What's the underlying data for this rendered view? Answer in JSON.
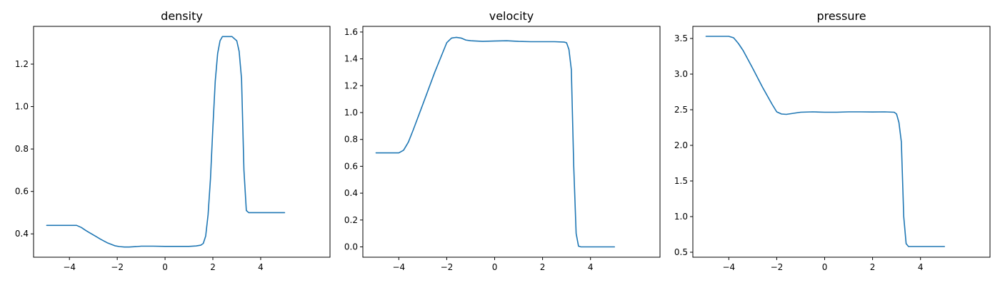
{
  "style": {
    "line_color": "#1f77b4",
    "background": "#ffffff",
    "axes_color": "#000000"
  },
  "chart_data": [
    {
      "type": "line",
      "title": "density",
      "xlabel": "",
      "ylabel": "",
      "grid": false,
      "xlim": [
        -5.5,
        6.9
      ],
      "ylim": [
        0.29,
        1.378
      ],
      "x_ticks": [
        -4,
        -2,
        0,
        2,
        4
      ],
      "x_tick_labels": [
        "−4",
        "−2",
        "0",
        "2",
        "4"
      ],
      "y_ticks": [
        0.4,
        0.6,
        0.8,
        1.0,
        1.2
      ],
      "y_tick_labels": [
        "0.4",
        "0.6",
        "0.8",
        "1.0",
        "1.2"
      ],
      "series": [
        {
          "x": [
            -4.95,
            -4.5,
            -4.0,
            -3.7,
            -3.5,
            -3.3,
            -3.0,
            -2.7,
            -2.4,
            -2.1,
            -1.9,
            -1.7,
            -1.5,
            -1.2,
            -1.0,
            -0.5,
            0.0,
            0.5,
            1.0,
            1.3,
            1.5,
            1.6,
            1.7,
            1.8,
            1.9,
            2.0,
            2.1,
            2.2,
            2.3,
            2.4,
            2.5,
            2.6,
            2.8,
            3.0,
            3.1,
            3.2,
            3.3,
            3.4,
            3.5,
            3.6,
            4.0,
            4.5,
            5.0
          ],
          "y": [
            0.44,
            0.44,
            0.44,
            0.44,
            0.43,
            0.415,
            0.395,
            0.375,
            0.357,
            0.344,
            0.34,
            0.338,
            0.338,
            0.34,
            0.342,
            0.342,
            0.341,
            0.341,
            0.341,
            0.343,
            0.347,
            0.355,
            0.39,
            0.49,
            0.66,
            0.9,
            1.12,
            1.25,
            1.31,
            1.33,
            1.33,
            1.33,
            1.33,
            1.31,
            1.26,
            1.13,
            0.7,
            0.51,
            0.5,
            0.5,
            0.5,
            0.5,
            0.5
          ]
        }
      ]
    },
    {
      "type": "line",
      "title": "velocity",
      "xlabel": "",
      "ylabel": "",
      "grid": false,
      "xlim": [
        -5.5,
        6.9
      ],
      "ylim": [
        -0.077,
        1.642
      ],
      "x_ticks": [
        -4,
        -2,
        0,
        2,
        4
      ],
      "x_tick_labels": [
        "−4",
        "−2",
        "0",
        "2",
        "4"
      ],
      "y_ticks": [
        0.0,
        0.2,
        0.4,
        0.6,
        0.8,
        1.0,
        1.2,
        1.4,
        1.6
      ],
      "y_tick_labels": [
        "0.0",
        "0.2",
        "0.4",
        "0.6",
        "0.8",
        "1.0",
        "1.2",
        "1.4",
        "1.6"
      ],
      "series": [
        {
          "x": [
            -4.95,
            -4.5,
            -4.0,
            -3.8,
            -3.6,
            -3.4,
            -3.0,
            -2.5,
            -2.0,
            -1.8,
            -1.6,
            -1.4,
            -1.2,
            -1.0,
            -0.5,
            0.0,
            0.5,
            1.0,
            1.5,
            2.0,
            2.5,
            2.9,
            3.0,
            3.1,
            3.2,
            3.3,
            3.4,
            3.5,
            3.6,
            4.0,
            4.5,
            5.0
          ],
          "y": [
            0.7,
            0.7,
            0.7,
            0.72,
            0.78,
            0.87,
            1.06,
            1.3,
            1.52,
            1.555,
            1.56,
            1.555,
            1.54,
            1.535,
            1.53,
            1.533,
            1.535,
            1.53,
            1.528,
            1.528,
            1.528,
            1.525,
            1.52,
            1.47,
            1.32,
            0.6,
            0.1,
            0.005,
            0.0,
            0.0,
            0.0,
            0.0
          ]
        }
      ]
    },
    {
      "type": "line",
      "title": "pressure",
      "xlabel": "",
      "ylabel": "",
      "grid": false,
      "xlim": [
        -5.5,
        6.9
      ],
      "ylim": [
        0.43,
        3.67
      ],
      "x_ticks": [
        -4,
        -2,
        0,
        2,
        4
      ],
      "x_tick_labels": [
        "−4",
        "−2",
        "0",
        "2",
        "4"
      ],
      "y_ticks": [
        0.5,
        1.0,
        1.5,
        2.0,
        2.5,
        3.0,
        3.5
      ],
      "y_tick_labels": [
        "0.5",
        "1.0",
        "1.5",
        "2.0",
        "2.5",
        "3.0",
        "3.5"
      ],
      "series": [
        {
          "x": [
            -4.95,
            -4.5,
            -4.0,
            -3.8,
            -3.6,
            -3.4,
            -3.0,
            -2.6,
            -2.2,
            -2.0,
            -1.8,
            -1.6,
            -1.4,
            -1.0,
            -0.5,
            0.0,
            0.5,
            1.0,
            1.5,
            2.0,
            2.5,
            2.9,
            3.0,
            3.1,
            3.2,
            3.3,
            3.4,
            3.5,
            3.6,
            4.0,
            4.5,
            5.0
          ],
          "y": [
            3.53,
            3.53,
            3.53,
            3.51,
            3.43,
            3.33,
            3.08,
            2.82,
            2.58,
            2.47,
            2.44,
            2.435,
            2.445,
            2.465,
            2.47,
            2.465,
            2.465,
            2.47,
            2.47,
            2.468,
            2.47,
            2.465,
            2.44,
            2.32,
            2.05,
            1.0,
            0.62,
            0.58,
            0.58,
            0.58,
            0.58,
            0.58
          ]
        }
      ]
    }
  ]
}
